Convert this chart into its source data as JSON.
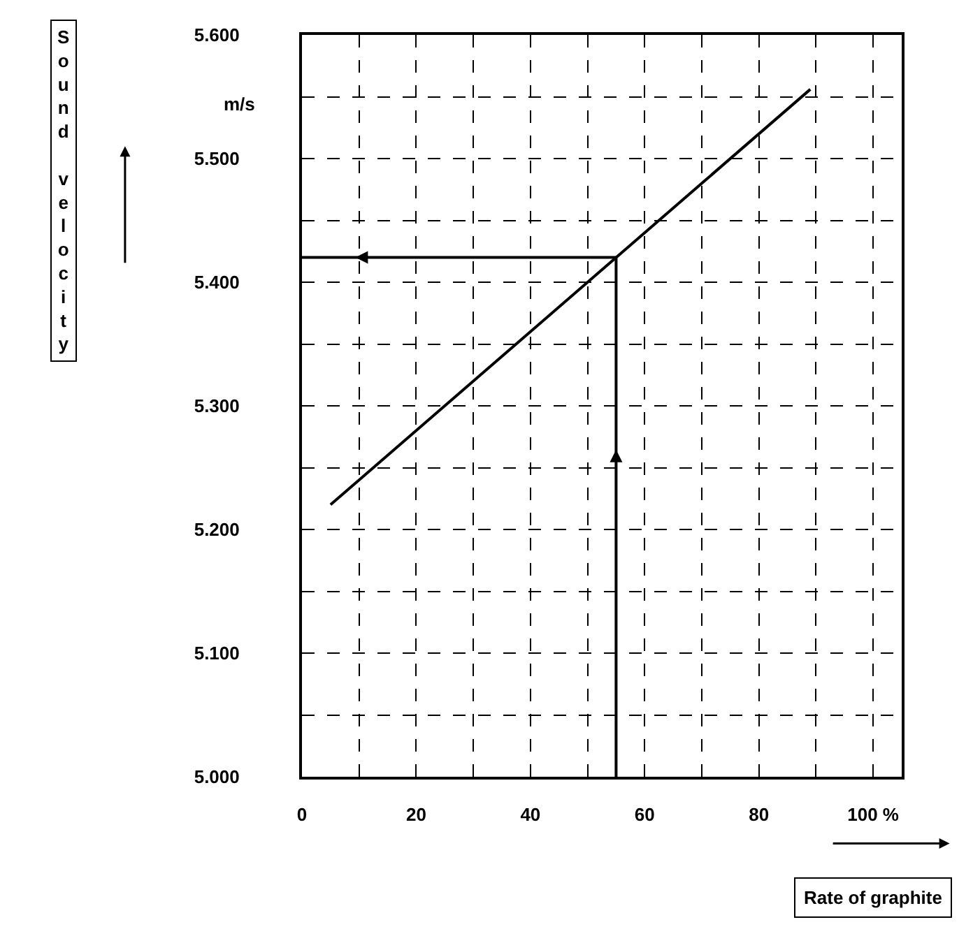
{
  "chart_data": {
    "type": "line",
    "xlabel": "Rate of graphite",
    "ylabel": "Sound velocity",
    "annotations": [
      "m/s"
    ],
    "series": [
      {
        "color": "#000000",
        "x": [
          5,
          89
        ],
        "values": [
          5220,
          5556
        ]
      },
      {
        "color": "#000000",
        "x": [
          55,
          55,
          0
        ],
        "values": [
          5000,
          5420,
          5420
        ]
      }
    ],
    "xlim": [
      0,
      105
    ],
    "ylim": [
      5000,
      5600
    ],
    "xticks": [
      0,
      20,
      40,
      60,
      80,
      {
        "value": 100,
        "label": "100 %"
      }
    ],
    "yticks": [
      {
        "value": 5000,
        "label": "5.000"
      },
      {
        "value": 5100,
        "label": "5.100"
      },
      {
        "value": 5200,
        "label": "5.200"
      },
      {
        "value": 5300,
        "label": "5.300"
      },
      {
        "value": 5400,
        "label": "5.400"
      },
      {
        "value": 5500,
        "label": "5.500"
      },
      {
        "value": 5600,
        "label": "5.600"
      }
    ],
    "grid": true,
    "marker": "none",
    "line_style": "solid"
  }
}
